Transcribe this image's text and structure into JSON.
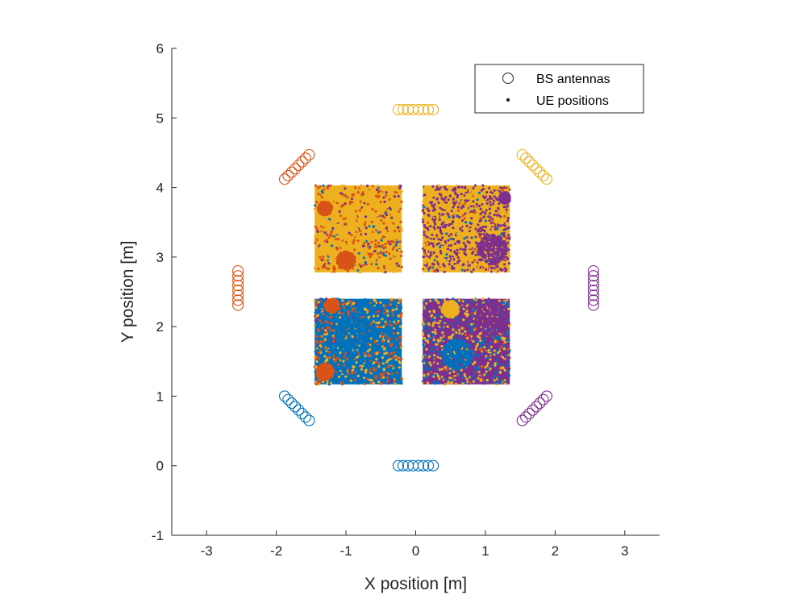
{
  "chart_data": {
    "type": "scatter",
    "title": "",
    "xlabel": "X position [m]",
    "ylabel": "Y position [m]",
    "xlim": [
      -3.5,
      3.5
    ],
    "ylim": [
      -1,
      6
    ],
    "xticks": [
      -3,
      -2,
      -1,
      0,
      1,
      2,
      3
    ],
    "xtick_labels": [
      "-3",
      "-2",
      "-1",
      "0",
      "1",
      "2",
      "3"
    ],
    "yticks": [
      -1,
      0,
      1,
      2,
      3,
      4,
      5,
      6
    ],
    "ytick_labels": [
      "-1",
      "0",
      "1",
      "2",
      "3",
      "4",
      "5",
      "6"
    ],
    "grid": false,
    "legend": {
      "location": "top-right",
      "entries": [
        {
          "label": "BS antennas",
          "marker": "circle"
        },
        {
          "label": "UE positions",
          "marker": "dot"
        }
      ]
    },
    "colors": {
      "blue": "#0072bd",
      "orange": "#d95319",
      "yellow": "#edb120",
      "purple": "#7e2f8e",
      "axis": "#262626"
    },
    "bs_antennas": [
      {
        "name": "south",
        "color": "blue",
        "x": [
          -0.25,
          -0.18,
          -0.11,
          -0.04,
          0.04,
          0.11,
          0.18,
          0.25
        ],
        "y": [
          0,
          0,
          0,
          0,
          0,
          0,
          0,
          0
        ]
      },
      {
        "name": "north",
        "color": "yellow",
        "x": [
          -0.25,
          -0.18,
          -0.11,
          -0.04,
          0.04,
          0.11,
          0.18,
          0.25
        ],
        "y": [
          5.12,
          5.12,
          5.12,
          5.12,
          5.12,
          5.12,
          5.12,
          5.12
        ]
      },
      {
        "name": "west",
        "color": "orange",
        "x": [
          -2.55,
          -2.55,
          -2.55,
          -2.55,
          -2.55,
          -2.55,
          -2.55,
          -2.55
        ],
        "y": [
          2.31,
          2.38,
          2.45,
          2.52,
          2.59,
          2.66,
          2.73,
          2.8
        ]
      },
      {
        "name": "east",
        "color": "purple",
        "x": [
          2.55,
          2.55,
          2.55,
          2.55,
          2.55,
          2.55,
          2.55,
          2.55
        ],
        "y": [
          2.31,
          2.38,
          2.45,
          2.52,
          2.59,
          2.66,
          2.73,
          2.8
        ]
      },
      {
        "name": "north-west",
        "color": "orange",
        "x": [
          -1.88,
          -1.83,
          -1.78,
          -1.73,
          -1.68,
          -1.63,
          -1.58,
          -1.53
        ],
        "y": [
          4.12,
          4.17,
          4.22,
          4.27,
          4.32,
          4.37,
          4.42,
          4.47
        ]
      },
      {
        "name": "north-east",
        "color": "yellow",
        "x": [
          1.53,
          1.58,
          1.63,
          1.68,
          1.73,
          1.78,
          1.83,
          1.88
        ],
        "y": [
          4.47,
          4.42,
          4.37,
          4.32,
          4.27,
          4.22,
          4.17,
          4.12
        ]
      },
      {
        "name": "south-west",
        "color": "blue",
        "x": [
          -1.88,
          -1.83,
          -1.78,
          -1.73,
          -1.68,
          -1.63,
          -1.58,
          -1.53
        ],
        "y": [
          1.0,
          0.95,
          0.9,
          0.85,
          0.8,
          0.75,
          0.7,
          0.65
        ]
      },
      {
        "name": "south-east",
        "color": "purple",
        "x": [
          1.53,
          1.58,
          1.63,
          1.68,
          1.73,
          1.78,
          1.83,
          1.88
        ],
        "y": [
          0.65,
          0.7,
          0.75,
          0.8,
          0.85,
          0.9,
          0.95,
          1.0
        ]
      }
    ],
    "ue_regions": [
      {
        "name": "top-left",
        "x_range": [
          -1.45,
          -0.2
        ],
        "y_range": [
          2.78,
          4.03
        ],
        "dominant": "yellow",
        "mix": {
          "yellow": 0.78,
          "orange": 0.14,
          "purple": 0.05,
          "blue": 0.03
        }
      },
      {
        "name": "top-right",
        "x_range": [
          0.1,
          1.35
        ],
        "y_range": [
          2.78,
          4.03
        ],
        "dominant": "yellow",
        "mix": {
          "yellow": 0.62,
          "purple": 0.33,
          "orange": 0.03,
          "blue": 0.02
        }
      },
      {
        "name": "bottom-left",
        "x_range": [
          -1.45,
          -0.2
        ],
        "y_range": [
          1.17,
          2.4
        ],
        "dominant": "blue",
        "mix": {
          "blue": 0.62,
          "orange": 0.2,
          "yellow": 0.15,
          "purple": 0.03
        }
      },
      {
        "name": "bottom-right",
        "x_range": [
          0.1,
          1.35
        ],
        "y_range": [
          1.17,
          2.4
        ],
        "dominant": "purple",
        "mix": {
          "purple": 0.52,
          "yellow": 0.25,
          "blue": 0.2,
          "orange": 0.03
        }
      }
    ]
  }
}
